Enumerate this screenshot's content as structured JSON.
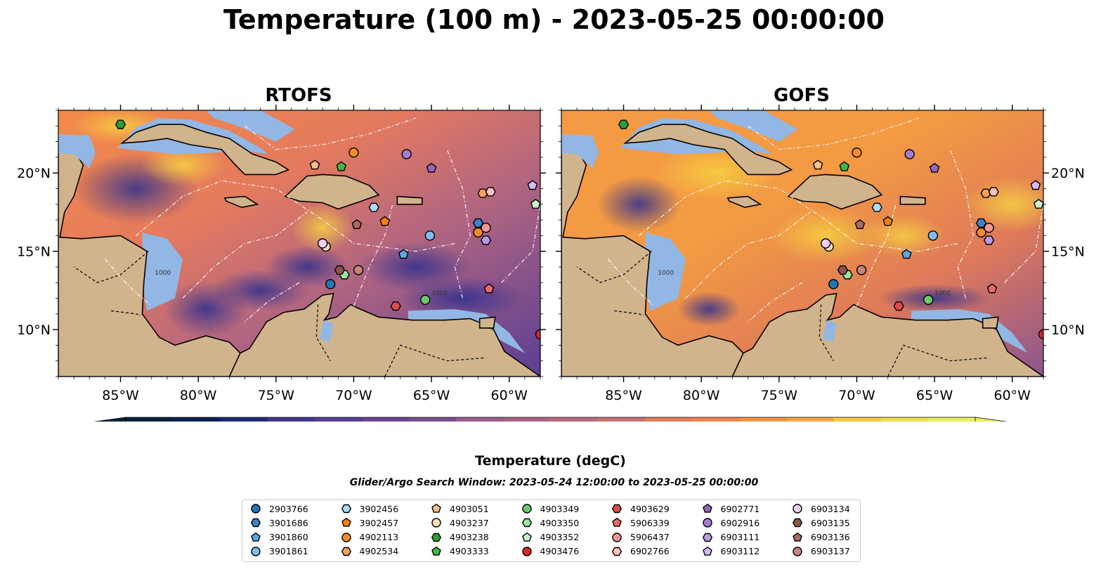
{
  "title": "Temperature (100 m) - 2023-05-25 00:00:00",
  "panels": [
    {
      "title": "RTOFS"
    },
    {
      "title": "GOFS"
    }
  ],
  "map": {
    "lon_range": [
      -89,
      -58
    ],
    "lat_range": [
      7,
      24
    ],
    "lon_ticks": [
      "85°W",
      "80°W",
      "75°W",
      "70°W",
      "65°W",
      "60°W"
    ],
    "lat_ticks": [
      "20°N",
      "15°N",
      "10°N"
    ],
    "land_color": "#d2b48c",
    "shallow_color": "#92b7e4",
    "contour_labels": [
      "1000"
    ]
  },
  "colorbar": {
    "label": "Temperature (degC)",
    "min": 18,
    "max": 27,
    "ticks": [
      "18",
      "19",
      "20",
      "21",
      "22",
      "23",
      "24",
      "25",
      "26",
      "27"
    ],
    "colors": [
      "#06223a",
      "#101f58",
      "#1e287a",
      "#2f2f90",
      "#443497",
      "#583d97",
      "#6a4594",
      "#7a4e92",
      "#8a558f",
      "#9c5d8b",
      "#ab6485",
      "#bb6b7d",
      "#cb7072",
      "#da7567",
      "#e67b59",
      "#f0844c",
      "#f89343",
      "#fba33e",
      "#fbb63d",
      "#f8ca40",
      "#f1dd49",
      "#eaf05a"
    ],
    "under_color": "#06223a",
    "over_color": "#eaf05a"
  },
  "search_window": "Glider/Argo Search Window: 2023-05-24 12:00:00 to 2023-05-25 00:00:00",
  "floats": [
    {
      "id": "2903766",
      "marker": "circle",
      "color": "#1f77b4",
      "lon": -71.5,
      "lat": 12.9
    },
    {
      "id": "3901686",
      "marker": "hexagon",
      "color": "#3c84c4",
      "lon": -62.0,
      "lat": 16.8
    },
    {
      "id": "3901860",
      "marker": "pentagon",
      "color": "#5aa8e0",
      "lon": -66.8,
      "lat": 14.8
    },
    {
      "id": "3901861",
      "marker": "circle",
      "color": "#7fbef0",
      "lon": -65.1,
      "lat": 16.0
    },
    {
      "id": "3902456",
      "marker": "hexagon",
      "color": "#aedcf8",
      "lon": -68.7,
      "lat": 17.8
    },
    {
      "id": "3902457",
      "marker": "pentagon",
      "color": "#ff7f0e",
      "lon": -68.0,
      "lat": 16.9
    },
    {
      "id": "4902113",
      "marker": "circle",
      "color": "#f58b2a",
      "lon": -62.0,
      "lat": 16.2
    },
    {
      "id": "4902534",
      "marker": "hexagon",
      "color": "#f8a15a",
      "lon": -61.7,
      "lat": 18.7
    },
    {
      "id": "4903051",
      "marker": "pentagon",
      "color": "#fbbf8a",
      "lon": -72.5,
      "lat": 20.5
    },
    {
      "id": "4903237",
      "marker": "circle",
      "color": "#fde0c0",
      "lon": -71.8,
      "lat": 15.3
    },
    {
      "id": "4903238",
      "marker": "hexagon",
      "color": "#2ca02c",
      "lon": -85.0,
      "lat": 23.1
    },
    {
      "id": "4903333",
      "marker": "pentagon",
      "color": "#42b842",
      "lon": -70.8,
      "lat": 20.4
    },
    {
      "id": "4903349",
      "marker": "circle",
      "color": "#6cc86c",
      "lon": -65.4,
      "lat": 11.9
    },
    {
      "id": "4903350",
      "marker": "hexagon",
      "color": "#9ce39c",
      "lon": -70.6,
      "lat": 13.5
    },
    {
      "id": "4903352",
      "marker": "pentagon",
      "color": "#c8f5c8",
      "lon": -58.3,
      "lat": 18.0
    },
    {
      "id": "4903476",
      "marker": "circle",
      "color": "#d62728",
      "lon": -58.0,
      "lat": 9.7
    },
    {
      "id": "4903629",
      "marker": "hexagon",
      "color": "#e04a4a",
      "lon": -67.3,
      "lat": 11.5
    },
    {
      "id": "5906339",
      "marker": "pentagon",
      "color": "#e86a6a",
      "lon": -61.3,
      "lat": 12.6
    },
    {
      "id": "5906437",
      "marker": "circle",
      "color": "#f29595",
      "lon": -61.5,
      "lat": 16.5
    },
    {
      "id": "6902766",
      "marker": "hexagon",
      "color": "#ffc0c0",
      "lon": -61.2,
      "lat": 18.8
    },
    {
      "id": "6902771",
      "marker": "pentagon",
      "color": "#9467bd",
      "lon": -65.0,
      "lat": 20.3
    },
    {
      "id": "6902916",
      "marker": "circle",
      "color": "#a37ed0",
      "lon": -66.6,
      "lat": 21.2
    },
    {
      "id": "6903111",
      "marker": "hexagon",
      "color": "#b89ae0",
      "lon": -61.5,
      "lat": 15.7
    },
    {
      "id": "6903112",
      "marker": "pentagon",
      "color": "#d4bcf5",
      "lon": -58.5,
      "lat": 19.2
    },
    {
      "id": "6903134",
      "marker": "circle",
      "color": "#efcff8",
      "lon": -72.0,
      "lat": 15.5
    },
    {
      "id": "6903135",
      "marker": "hexagon",
      "color": "#8c564b",
      "lon": -70.9,
      "lat": 13.8
    },
    {
      "id": "6903136",
      "marker": "pentagon",
      "color": "#a66a5e",
      "lon": -69.8,
      "lat": 16.7
    },
    {
      "id": "6903137",
      "marker": "circle",
      "color": "#c4857a",
      "lon": -69.7,
      "lat": 13.8
    },
    {
      "id": "extra-1",
      "marker": "circle",
      "color": "#f58b2a",
      "lon": -70.0,
      "lat": 21.3
    }
  ],
  "legend_ids": [
    "2903766",
    "3901686",
    "3901860",
    "3901861",
    "3902456",
    "3902457",
    "4902113",
    "4902534",
    "4903051",
    "4903237",
    "4903238",
    "4903333",
    "4903349",
    "4903350",
    "4903352",
    "4903476",
    "4903629",
    "5906339",
    "5906437",
    "6902766",
    "6902771",
    "6902916",
    "6903111",
    "6903112",
    "6903134",
    "6903135",
    "6903136",
    "6903137"
  ]
}
